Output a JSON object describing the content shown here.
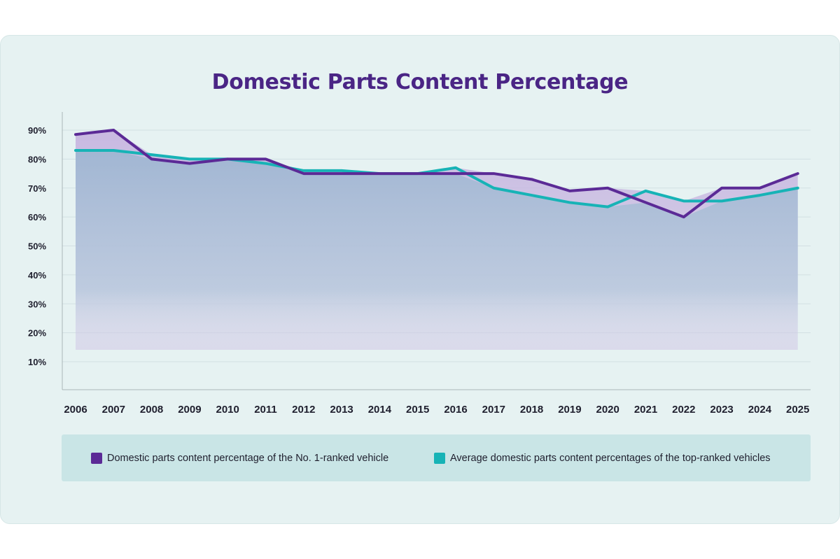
{
  "chart_data": {
    "type": "line",
    "title": "Domestic Parts Content Percentage",
    "xlabel": "",
    "ylabel": "",
    "categories": [
      "2006",
      "2007",
      "2008",
      "2009",
      "2010",
      "2011",
      "2012",
      "2013",
      "2014",
      "2015",
      "2016",
      "2017",
      "2018",
      "2019",
      "2020",
      "2021",
      "2022",
      "2023",
      "2024",
      "2025"
    ],
    "y_ticks": [
      "10%",
      "20%",
      "30%",
      "40%",
      "50%",
      "60%",
      "70%",
      "80%",
      "90%"
    ],
    "ylim": [
      0,
      95
    ],
    "grid": "horizontal",
    "legend_placement": "bottom",
    "series": [
      {
        "name": "Domestic parts content percentage of the No. 1-ranked vehicle",
        "color": "#5b2a96",
        "values": [
          88.5,
          90,
          80,
          78.5,
          80,
          80,
          75,
          75,
          75,
          75,
          75,
          75,
          73,
          69,
          70,
          65,
          60,
          70,
          70,
          75
        ]
      },
      {
        "name": "Average domestic parts content percentages of the top-ranked vehicles",
        "color": "#17b3b6",
        "values": [
          83,
          83,
          81.5,
          80,
          80,
          78.5,
          76,
          76,
          75,
          75,
          77,
          70,
          67.5,
          65,
          63.5,
          69,
          65.5,
          65.5,
          67.5,
          70
        ]
      }
    ]
  }
}
